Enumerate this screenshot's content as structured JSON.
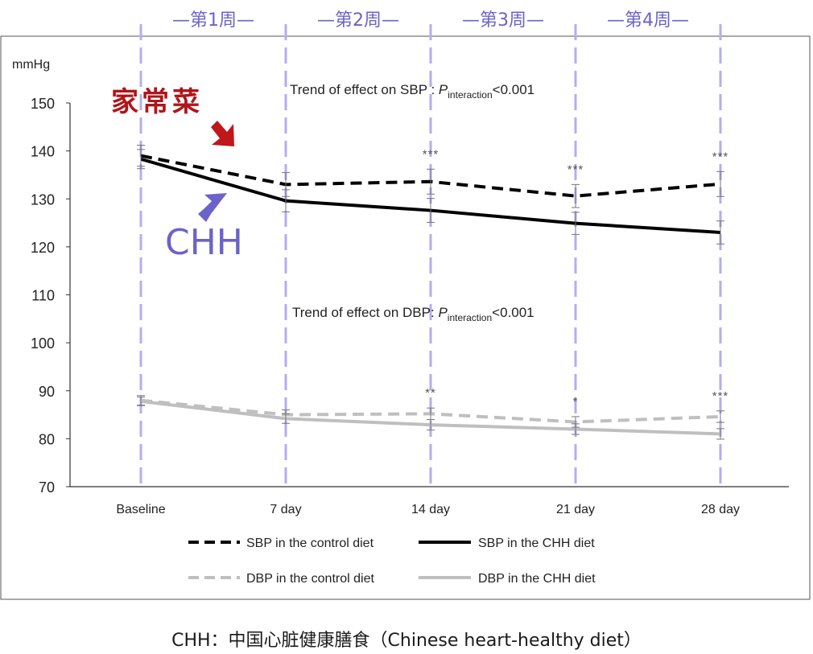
{
  "week_labels": [
    "—第1周—",
    "—第2周—",
    "—第3周—",
    "—第4周—"
  ],
  "annotations": {
    "control_label": "家常菜",
    "chh_label": "CHH",
    "sbp_trend_prefix": "Trend of effect on SBP : ",
    "dbp_trend_prefix": "Trend of effect on DBP: ",
    "p_letter": "P",
    "p_subscript": "interaction",
    "p_value": "<0.001"
  },
  "caption": "CHH：中国心脏健康膳食（Chinese heart-healthy diet）",
  "colors": {
    "sbp": "#000000",
    "dbp": "#bfbfbf",
    "week_divider": "#b3aef0",
    "week_text": "#6b63c9",
    "control_label": "#b0151a",
    "chh_label": "#6b63c9",
    "control_arrow": "#c0161c",
    "chh_arrow": "#6b63c9"
  },
  "chart_data": {
    "type": "line",
    "ylabel": "mmHg",
    "categories": [
      "Baseline",
      "7 day",
      "14 day",
      "21 day",
      "28 day"
    ],
    "ylim": [
      70,
      150
    ],
    "yticks": [
      70,
      80,
      90,
      100,
      110,
      120,
      130,
      140,
      150
    ],
    "legend_position": "bottom",
    "series": [
      {
        "name": "SBP in the control diet",
        "values": [
          139.0,
          133.0,
          133.6,
          130.6,
          133.1
        ],
        "errors": [
          2.2,
          2.5,
          2.6,
          2.4,
          2.6
        ],
        "significance": [
          "",
          "",
          "***",
          "***",
          "***"
        ]
      },
      {
        "name": "SBP in the CHH diet",
        "values": [
          138.3,
          129.6,
          127.6,
          124.9,
          123.0
        ],
        "errors": [
          2.0,
          2.3,
          2.5,
          2.3,
          2.4
        ],
        "significance": [
          "",
          "",
          "",
          "",
          ""
        ]
      },
      {
        "name": "DBP in the control diet",
        "values": [
          88.0,
          85.0,
          85.2,
          83.5,
          84.6
        ],
        "errors": [
          1.0,
          1.0,
          1.2,
          1.1,
          1.2
        ],
        "significance": [
          "",
          "",
          "**",
          "*",
          "***"
        ]
      },
      {
        "name": "DBP in the CHH diet",
        "values": [
          87.8,
          84.2,
          82.9,
          82.0,
          81.0
        ],
        "errors": [
          0.9,
          1.0,
          1.1,
          1.1,
          1.1
        ],
        "significance": [
          "",
          "",
          "",
          "",
          ""
        ]
      }
    ]
  }
}
